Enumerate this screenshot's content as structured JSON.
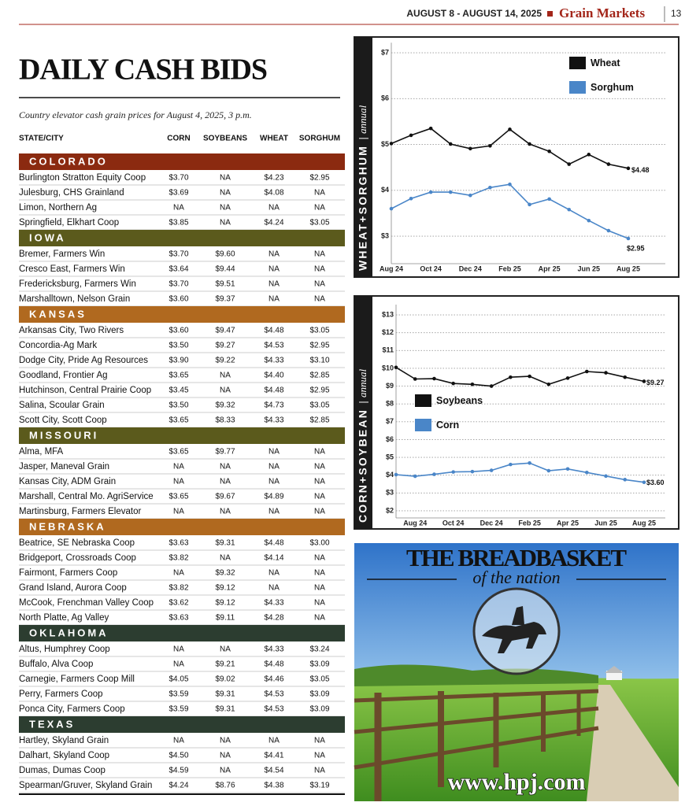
{
  "header": {
    "date": "AUGUST 8 - AUGUST 14, 2025",
    "section": "Grain Markets",
    "page": "13"
  },
  "title": "DAILY CASH BIDS",
  "subtitle": "Country elevator cash grain prices for August 4, 2025, 3 p.m.",
  "table": {
    "columns": [
      "STATE/CITY",
      "CORN",
      "SOYBEANS",
      "WHEAT",
      "SORGHUM"
    ],
    "sections": [
      {
        "name": "COLORADO",
        "color": "#8b2a10",
        "rows": [
          [
            "Burlington Stratton Equity Coop",
            "$3.70",
            "NA",
            "$4.23",
            "$2.95"
          ],
          [
            "Julesburg, CHS Grainland",
            "$3.69",
            "NA",
            "$4.08",
            "NA"
          ],
          [
            "Limon, Northern Ag",
            "NA",
            "NA",
            "NA",
            "NA"
          ],
          [
            "Springfield, Elkhart Coop",
            "$3.85",
            "NA",
            "$4.24",
            "$3.05"
          ]
        ]
      },
      {
        "name": "IOWA",
        "color": "#5b5a1c",
        "rows": [
          [
            "Bremer, Farmers Win",
            "$3.70",
            "$9.60",
            "NA",
            "NA"
          ],
          [
            "Cresco East, Farmers Win",
            "$3.64",
            "$9.44",
            "NA",
            "NA"
          ],
          [
            "Fredericksburg, Farmers Win",
            "$3.70",
            "$9.51",
            "NA",
            "NA"
          ],
          [
            "Marshalltown, Nelson Grain",
            "$3.60",
            "$9.37",
            "NA",
            "NA"
          ]
        ]
      },
      {
        "name": "KANSAS",
        "color": "#b0691f",
        "rows": [
          [
            "Arkansas City, Two Rivers",
            "$3.60",
            "$9.47",
            "$4.48",
            "$3.05"
          ],
          [
            "Concordia-Ag Mark",
            "$3.50",
            "$9.27",
            "$4.53",
            "$2.95"
          ],
          [
            "Dodge City, Pride Ag Resources",
            "$3.90",
            "$9.22",
            "$4.33",
            "$3.10"
          ],
          [
            "Goodland, Frontier Ag",
            "$3.65",
            "NA",
            "$4.40",
            "$2.85"
          ],
          [
            "Hutchinson, Central Prairie Coop",
            "$3.45",
            "NA",
            "$4.48",
            "$2.95"
          ],
          [
            "Salina, Scoular Grain",
            "$3.50",
            "$9.32",
            "$4.73",
            "$3.05"
          ],
          [
            "Scott City, Scott Coop",
            "$3.65",
            "$8.33",
            "$4.33",
            "$2.85"
          ]
        ]
      },
      {
        "name": "MISSOURI",
        "color": "#5b5a1c",
        "rows": [
          [
            "Alma, MFA",
            "$3.65",
            "$9.77",
            "NA",
            "NA"
          ],
          [
            "Jasper, Maneval Grain",
            "NA",
            "NA",
            "NA",
            "NA"
          ],
          [
            "Kansas City, ADM Grain",
            "NA",
            "NA",
            "NA",
            "NA"
          ],
          [
            "Marshall, Central Mo. AgriService",
            "$3.65",
            "$9.67",
            "$4.89",
            "NA"
          ],
          [
            "Martinsburg, Farmers Elevator",
            "NA",
            "NA",
            "NA",
            "NA"
          ]
        ]
      },
      {
        "name": "NEBRASKA",
        "color": "#b0691f",
        "rows": [
          [
            "Beatrice, SE Nebraska Coop",
            "$3.63",
            "$9.31",
            "$4.48",
            "$3.00"
          ],
          [
            "Bridgeport, Crossroads Coop",
            "$3.82",
            "NA",
            "$4.14",
            "NA"
          ],
          [
            "Fairmont, Farmers Coop",
            "NA",
            "$9.32",
            "NA",
            "NA"
          ],
          [
            "Grand Island, Aurora Coop",
            "$3.82",
            "$9.12",
            "NA",
            "NA"
          ],
          [
            "McCook, Frenchman Valley Coop",
            "$3.62",
            "$9.12",
            "$4.33",
            "NA"
          ],
          [
            "North Platte, Ag Valley",
            "$3.63",
            "$9.11",
            "$4.28",
            "NA"
          ]
        ]
      },
      {
        "name": "OKLAHOMA",
        "color": "#2c3d30",
        "rows": [
          [
            "Altus, Humphrey Coop",
            "NA",
            "NA",
            "$4.33",
            "$3.24"
          ],
          [
            "Buffalo, Alva Coop",
            "NA",
            "$9.21",
            "$4.48",
            "$3.09"
          ],
          [
            "Carnegie, Farmers Coop Mill",
            "$4.05",
            "$9.02",
            "$4.46",
            "$3.05"
          ],
          [
            "Perry, Farmers Coop",
            "$3.59",
            "$9.31",
            "$4.53",
            "$3.09"
          ],
          [
            "Ponca City, Farmers Coop",
            "$3.59",
            "$9.31",
            "$4.53",
            "$3.09"
          ]
        ]
      },
      {
        "name": "TEXAS",
        "color": "#2c3d30",
        "rows": [
          [
            "Hartley, Skyland Grain",
            "NA",
            "NA",
            "NA",
            "NA"
          ],
          [
            "Dalhart, Skyland Coop",
            "$4.50",
            "NA",
            "$4.41",
            "NA"
          ],
          [
            "Dumas, Dumas Coop",
            "$4.59",
            "NA",
            "$4.54",
            "NA"
          ],
          [
            "Spearman/Gruver, Skyland Grain",
            "$4.24",
            "$8.76",
            "$4.38",
            "$3.19"
          ]
        ]
      }
    ]
  },
  "chart_data": [
    {
      "type": "line",
      "side_title": "WHEAT+SORGHUM",
      "side_subtitle": "annual",
      "categories": [
        "Aug 24",
        null,
        "Oct 24",
        null,
        "Dec 24",
        null,
        "Feb 25",
        null,
        "Apr 25",
        null,
        "Jun 25",
        null,
        "Aug 25"
      ],
      "series": [
        {
          "name": "Wheat",
          "color": "#111111",
          "values": [
            5.02,
            5.2,
            5.35,
            5.01,
            4.91,
            4.97,
            5.33,
            5.01,
            4.85,
            4.57,
            4.78,
            4.57,
            4.48
          ],
          "value_labels": [
            null,
            null,
            null,
            null,
            null,
            null,
            null,
            null,
            null,
            null,
            null,
            null,
            "$4.48"
          ]
        },
        {
          "name": "Sorghum",
          "color": "#4a86c8",
          "values": [
            3.6,
            3.82,
            3.96,
            3.96,
            3.89,
            4.06,
            4.13,
            3.69,
            3.81,
            3.58,
            3.34,
            3.12,
            2.95
          ],
          "value_labels": [
            null,
            null,
            null,
            null,
            null,
            null,
            null,
            null,
            null,
            null,
            null,
            null,
            "$2.95"
          ]
        }
      ],
      "ylim": [
        2.4,
        7.15
      ],
      "yticks": [
        {
          "value": 3,
          "label": "$3"
        },
        {
          "value": 4,
          "label": "$4"
        },
        {
          "value": 5,
          "label": "$5"
        },
        {
          "value": 6,
          "label": "$6"
        },
        {
          "value": 7,
          "label": "$7"
        }
      ],
      "grid": true,
      "legend": "upper right"
    },
    {
      "type": "line",
      "side_title": "CORN+SOYBEAN",
      "side_subtitle": "annual",
      "categories": [
        null,
        "Aug 24",
        null,
        "Oct 24",
        null,
        "Dec 24",
        null,
        "Feb 25",
        null,
        "Apr 25",
        null,
        "Jun 25",
        null,
        "Aug 25"
      ],
      "series": [
        {
          "name": "Soybeans",
          "color": "#111111",
          "values": [
            10.05,
            9.4,
            9.42,
            9.15,
            9.1,
            9.0,
            9.5,
            9.55,
            9.1,
            9.45,
            9.82,
            9.75,
            9.5,
            9.27
          ],
          "value_labels": [
            null,
            null,
            null,
            null,
            null,
            null,
            null,
            null,
            null,
            null,
            null,
            null,
            null,
            "$9.27"
          ]
        },
        {
          "name": "Corn",
          "color": "#4a86c8",
          "values": [
            4.03,
            3.94,
            4.05,
            4.18,
            4.2,
            4.27,
            4.6,
            4.68,
            4.25,
            4.35,
            4.15,
            3.95,
            3.75,
            3.6
          ],
          "value_labels": [
            null,
            null,
            null,
            null,
            null,
            null,
            null,
            null,
            null,
            null,
            null,
            null,
            null,
            "$3.60"
          ]
        }
      ],
      "ylim": [
        1.6,
        13.4
      ],
      "yticks": [
        {
          "value": 2,
          "label": "$2"
        },
        {
          "value": 3,
          "label": "$3"
        },
        {
          "value": 4,
          "label": "$4"
        },
        {
          "value": 5,
          "label": "$5"
        },
        {
          "value": 6,
          "label": "$6"
        },
        {
          "value": 7,
          "label": "$7"
        },
        {
          "value": 8,
          "label": "$8"
        },
        {
          "value": 9,
          "label": "$9"
        },
        {
          "value": 10,
          "label": "$10"
        },
        {
          "value": 11,
          "label": "$11"
        },
        {
          "value": 12,
          "label": "$12"
        },
        {
          "value": 13,
          "label": "$13"
        }
      ],
      "grid": true,
      "legend": "left"
    }
  ],
  "ad": {
    "headline": "THE BREADBASKET",
    "tagline": "of the nation",
    "url": "www.hpj.com"
  }
}
